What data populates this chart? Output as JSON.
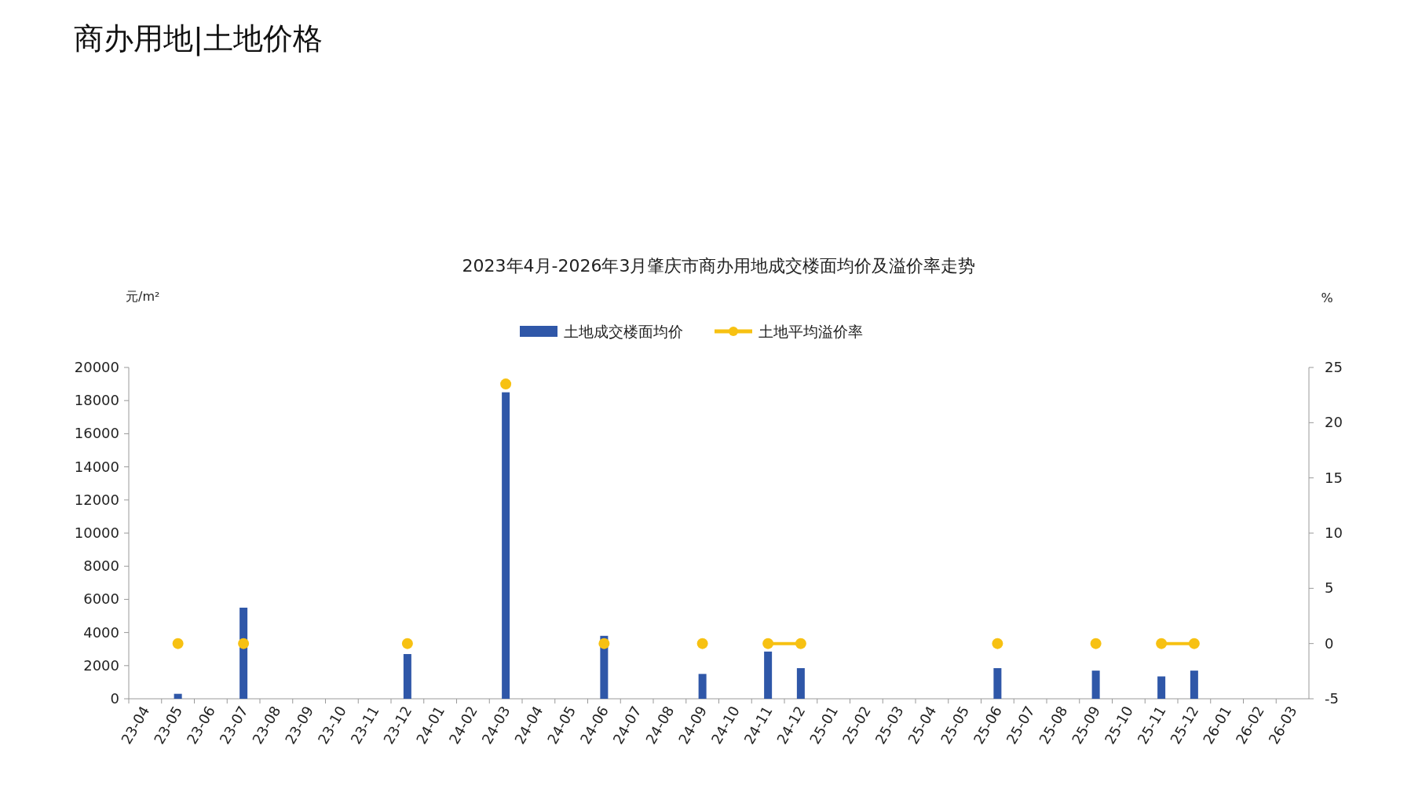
{
  "chart_data": {
    "type": "bar",
    "title": "2023年4月-2026年3月肇庆市商办用地成交楼面均价及溢价率走势",
    "annotations": [
      "商办用地|土地价格"
    ],
    "ylabel": "元/m²",
    "y2label": "%",
    "categories": [
      "23-04",
      "23-05",
      "23-06",
      "23-07",
      "23-08",
      "23-09",
      "23-10",
      "23-11",
      "23-12",
      "24-01",
      "24-02",
      "24-03",
      "24-04",
      "24-05",
      "24-06",
      "24-07",
      "24-08",
      "24-09",
      "24-10",
      "24-11",
      "24-12",
      "25-01",
      "25-02",
      "25-03",
      "25-04",
      "25-05",
      "25-06",
      "25-07",
      "25-08",
      "25-09",
      "25-10",
      "25-11",
      "25-12",
      "26-01",
      "26-02",
      "26-03"
    ],
    "series": [
      {
        "name": "土地成交楼面均价",
        "color": "#2f57a8",
        "values": [
          null,
          300,
          null,
          5500,
          null,
          null,
          null,
          null,
          2700,
          null,
          null,
          18500,
          null,
          null,
          3800,
          null,
          null,
          1500,
          null,
          2850,
          1850,
          null,
          null,
          null,
          null,
          null,
          1850,
          null,
          null,
          1700,
          null,
          1350,
          1700,
          null,
          null,
          null
        ]
      },
      {
        "name": "土地平均溢价率",
        "type": "line",
        "axis": "y2",
        "color": "#f7c112",
        "marker": "circle",
        "values": [
          null,
          0,
          null,
          0,
          null,
          null,
          null,
          null,
          0,
          null,
          null,
          23.5,
          null,
          null,
          0,
          null,
          null,
          0,
          null,
          0,
          0,
          null,
          null,
          null,
          null,
          null,
          0,
          null,
          null,
          0,
          null,
          0,
          0,
          null,
          null,
          null
        ]
      }
    ],
    "ylim": [
      0,
      20000
    ],
    "yticks": [
      0,
      2000,
      4000,
      6000,
      8000,
      10000,
      12000,
      14000,
      16000,
      18000,
      20000
    ],
    "y2lim": [
      -5,
      25
    ],
    "y2ticks": [
      -5,
      0,
      5,
      10,
      15,
      20,
      25
    ],
    "legend": "top",
    "grid": false
  }
}
